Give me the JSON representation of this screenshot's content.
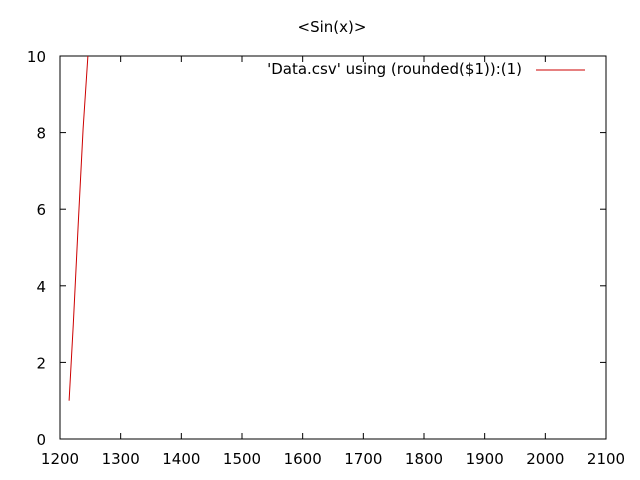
{
  "chart_data": {
    "type": "line",
    "title": "<Sin(x)>",
    "xlabel": "",
    "ylabel": "",
    "xlim": [
      1200,
      2100
    ],
    "ylim": [
      0,
      10
    ],
    "x_ticks": [
      "1200",
      "1300",
      "1400",
      "1500",
      "1600",
      "1700",
      "1800",
      "1900",
      "2000",
      "2100"
    ],
    "y_ticks": [
      "0",
      "2",
      "4",
      "6",
      "8",
      "10"
    ],
    "grid": false,
    "legend_position": "top-right",
    "series": [
      {
        "name": "'Data.csv' using (rounded($1)):(1)",
        "color": "#cc0000",
        "x": [
          1215,
          1222,
          1230,
          1238,
          1246
        ],
        "y": [
          1,
          3,
          5.6,
          8.1,
          10
        ]
      }
    ]
  }
}
